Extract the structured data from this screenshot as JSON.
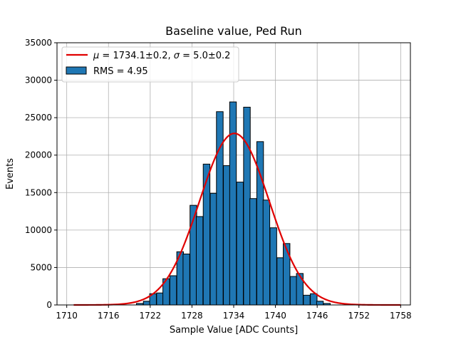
{
  "chart_data": {
    "type": "bar",
    "title": "Baseline value, Ped Run",
    "xlabel": "Sample Value [ADC Counts]",
    "ylabel": "Events",
    "xlim": [
      1708.6,
      1759.4
    ],
    "ylim": [
      0,
      35000
    ],
    "x_ticks": [
      1710,
      1716,
      1722,
      1728,
      1734,
      1740,
      1746,
      1752,
      1758
    ],
    "y_ticks": [
      0,
      5000,
      10000,
      15000,
      20000,
      25000,
      30000,
      35000
    ],
    "grid": true,
    "legend_position": "top-left",
    "histogram": {
      "name": "RMS = 4.95",
      "color": "#1f77b4",
      "edgecolor": "#000000",
      "bin_width": 0.96,
      "bins": [
        {
          "x": 1720.5,
          "value": 200
        },
        {
          "x": 1721.5,
          "value": 500
        },
        {
          "x": 1722.4,
          "value": 1500
        },
        {
          "x": 1723.4,
          "value": 1600
        },
        {
          "x": 1724.3,
          "value": 3500
        },
        {
          "x": 1725.3,
          "value": 3900
        },
        {
          "x": 1726.3,
          "value": 7100
        },
        {
          "x": 1727.2,
          "value": 6800
        },
        {
          "x": 1728.2,
          "value": 13300
        },
        {
          "x": 1729.1,
          "value": 11800
        },
        {
          "x": 1730.1,
          "value": 18800
        },
        {
          "x": 1731.1,
          "value": 14900
        },
        {
          "x": 1732.0,
          "value": 25800
        },
        {
          "x": 1733.0,
          "value": 18600
        },
        {
          "x": 1733.9,
          "value": 27100
        },
        {
          "x": 1734.9,
          "value": 16400
        },
        {
          "x": 1735.9,
          "value": 26400
        },
        {
          "x": 1736.8,
          "value": 14200
        },
        {
          "x": 1737.8,
          "value": 21800
        },
        {
          "x": 1738.7,
          "value": 14000
        },
        {
          "x": 1739.7,
          "value": 10300
        },
        {
          "x": 1740.7,
          "value": 6300
        },
        {
          "x": 1741.6,
          "value": 8200
        },
        {
          "x": 1742.6,
          "value": 3800
        },
        {
          "x": 1743.5,
          "value": 4200
        },
        {
          "x": 1744.5,
          "value": 1300
        },
        {
          "x": 1745.5,
          "value": 1500
        },
        {
          "x": 1746.4,
          "value": 500
        },
        {
          "x": 1747.4,
          "value": 200
        }
      ]
    },
    "fit": {
      "name_prefix_mu": "μ",
      "name_rest": " = 1734.1±0.2, ",
      "name_prefix_sigma": "σ",
      "name_tail": " = 5.0±0.2",
      "color": "#e00000",
      "mu": 1734.1,
      "sigma": 5.0,
      "amplitude": 22900,
      "x_range": [
        1711,
        1758
      ]
    }
  }
}
